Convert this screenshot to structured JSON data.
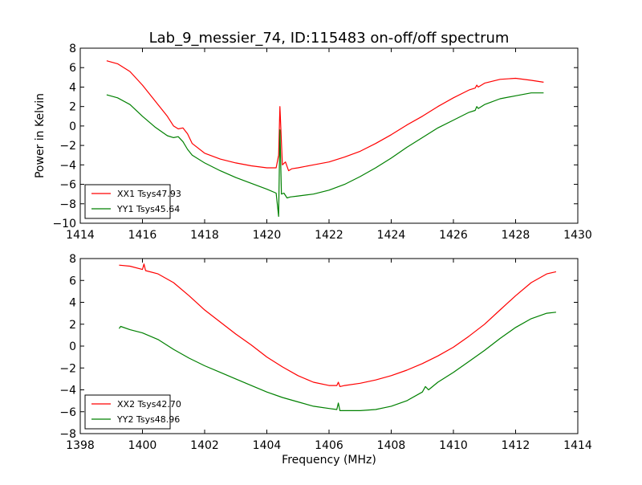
{
  "chart_data": [
    {
      "type": "line",
      "title": "Lab_9_messier_74, ID:115483 on-off/off spectrum",
      "xlabel": "",
      "ylabel": "Power in Kelvin",
      "xlim": [
        1414,
        1430
      ],
      "ylim": [
        -10,
        8
      ],
      "xticks": [
        1414,
        1416,
        1418,
        1420,
        1422,
        1424,
        1426,
        1428,
        1430
      ],
      "yticks": [
        -10,
        -8,
        -6,
        -4,
        -2,
        0,
        2,
        4,
        6,
        8
      ],
      "grid": false,
      "legend_position": "lower-left",
      "series": [
        {
          "name": "XX1 Tsys47.93",
          "color": "#ff0000",
          "x": [
            1414.85,
            1415.2,
            1415.6,
            1416.0,
            1416.4,
            1416.8,
            1417.0,
            1417.15,
            1417.3,
            1417.45,
            1417.6,
            1418.0,
            1418.5,
            1419.0,
            1419.5,
            1420.0,
            1420.3,
            1420.38,
            1420.42,
            1420.5,
            1420.6,
            1420.7,
            1420.8,
            1421.0,
            1421.5,
            1422.0,
            1422.5,
            1423.0,
            1423.5,
            1424.0,
            1424.5,
            1425.0,
            1425.5,
            1426.0,
            1426.5,
            1426.7,
            1426.75,
            1426.8,
            1427.0,
            1427.5,
            1428.0,
            1428.5,
            1428.9
          ],
          "y": [
            6.7,
            6.4,
            5.6,
            4.2,
            2.6,
            1.0,
            0.0,
            -0.3,
            -0.2,
            -0.8,
            -1.8,
            -2.8,
            -3.4,
            -3.8,
            -4.1,
            -4.3,
            -4.3,
            -3.0,
            2.0,
            -4.0,
            -3.7,
            -4.6,
            -4.4,
            -4.3,
            -4.0,
            -3.7,
            -3.2,
            -2.6,
            -1.8,
            -0.9,
            0.1,
            1.0,
            2.0,
            2.9,
            3.7,
            3.9,
            4.2,
            4.0,
            4.4,
            4.8,
            4.9,
            4.7,
            4.5
          ]
        },
        {
          "name": "YY1 Tsys45.64",
          "color": "#008000",
          "x": [
            1414.85,
            1415.2,
            1415.6,
            1416.0,
            1416.4,
            1416.8,
            1417.0,
            1417.15,
            1417.3,
            1417.45,
            1417.6,
            1418.0,
            1418.5,
            1419.0,
            1419.5,
            1420.0,
            1420.3,
            1420.38,
            1420.42,
            1420.47,
            1420.55,
            1420.65,
            1420.75,
            1421.0,
            1421.5,
            1422.0,
            1422.5,
            1423.0,
            1423.5,
            1424.0,
            1424.5,
            1425.0,
            1425.5,
            1426.0,
            1426.5,
            1426.7,
            1426.75,
            1426.8,
            1427.0,
            1427.5,
            1428.0,
            1428.5,
            1428.9
          ],
          "y": [
            3.2,
            2.9,
            2.2,
            1.0,
            -0.1,
            -1.0,
            -1.2,
            -1.1,
            -1.6,
            -2.4,
            -3.0,
            -3.8,
            -4.6,
            -5.3,
            -5.9,
            -6.5,
            -6.9,
            -9.3,
            -0.4,
            -7.0,
            -6.9,
            -7.4,
            -7.3,
            -7.2,
            -7.0,
            -6.6,
            -6.0,
            -5.2,
            -4.3,
            -3.3,
            -2.2,
            -1.2,
            -0.2,
            0.6,
            1.4,
            1.6,
            2.0,
            1.8,
            2.2,
            2.8,
            3.1,
            3.4,
            3.4
          ]
        }
      ]
    },
    {
      "type": "line",
      "title": "",
      "xlabel": "Frequency (MHz)",
      "ylabel": "",
      "xlim": [
        1398,
        1414
      ],
      "ylim": [
        -8,
        8
      ],
      "xticks": [
        1398,
        1400,
        1402,
        1404,
        1406,
        1408,
        1410,
        1412,
        1414
      ],
      "yticks": [
        -8,
        -6,
        -4,
        -2,
        0,
        2,
        4,
        6,
        8
      ],
      "grid": false,
      "legend_position": "lower-left",
      "series": [
        {
          "name": "XX2 Tsys42.70",
          "color": "#ff0000",
          "x": [
            1399.25,
            1399.6,
            1400.0,
            1400.05,
            1400.1,
            1400.5,
            1401.0,
            1401.5,
            1402.0,
            1402.5,
            1403.0,
            1403.5,
            1404.0,
            1404.5,
            1405.0,
            1405.5,
            1406.0,
            1406.25,
            1406.3,
            1406.35,
            1406.5,
            1407.0,
            1407.5,
            1408.0,
            1408.5,
            1409.0,
            1409.5,
            1410.0,
            1410.5,
            1411.0,
            1411.5,
            1412.0,
            1412.5,
            1413.0,
            1413.3
          ],
          "y": [
            7.4,
            7.3,
            7.0,
            7.5,
            6.9,
            6.6,
            5.8,
            4.6,
            3.3,
            2.2,
            1.1,
            0.1,
            -1.0,
            -1.9,
            -2.7,
            -3.3,
            -3.6,
            -3.6,
            -3.3,
            -3.7,
            -3.6,
            -3.4,
            -3.1,
            -2.7,
            -2.2,
            -1.6,
            -0.9,
            -0.1,
            0.9,
            2.0,
            3.3,
            4.6,
            5.8,
            6.6,
            6.8
          ]
        },
        {
          "name": "YY2 Tsys48.96",
          "color": "#008000",
          "x": [
            1399.25,
            1399.3,
            1399.6,
            1400.0,
            1400.5,
            1401.0,
            1401.5,
            1402.0,
            1402.5,
            1403.0,
            1403.5,
            1404.0,
            1404.5,
            1405.0,
            1405.5,
            1406.0,
            1406.25,
            1406.3,
            1406.35,
            1406.5,
            1407.0,
            1407.5,
            1408.0,
            1408.5,
            1409.0,
            1409.1,
            1409.2,
            1409.5,
            1410.0,
            1410.5,
            1411.0,
            1411.5,
            1412.0,
            1412.5,
            1413.0,
            1413.3
          ],
          "y": [
            1.6,
            1.8,
            1.5,
            1.2,
            0.6,
            -0.3,
            -1.1,
            -1.8,
            -2.4,
            -3.0,
            -3.6,
            -4.2,
            -4.7,
            -5.1,
            -5.5,
            -5.7,
            -5.8,
            -5.2,
            -5.9,
            -5.9,
            -5.9,
            -5.8,
            -5.5,
            -5.0,
            -4.2,
            -3.7,
            -4.0,
            -3.3,
            -2.4,
            -1.4,
            -0.4,
            0.7,
            1.7,
            2.5,
            3.0,
            3.1
          ]
        }
      ]
    }
  ]
}
